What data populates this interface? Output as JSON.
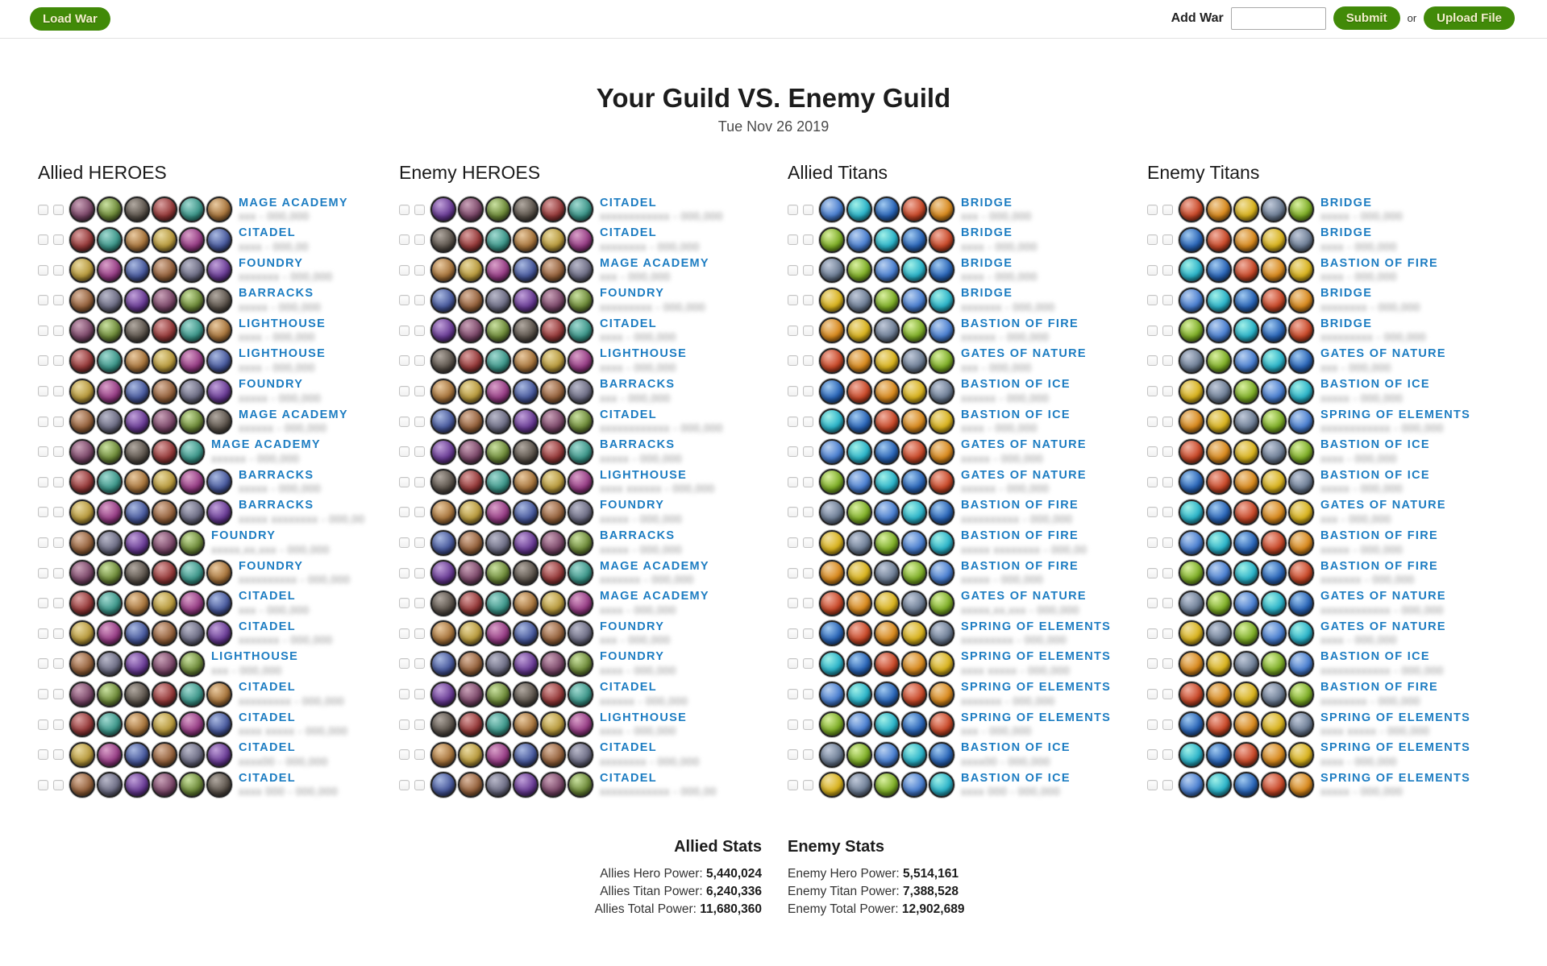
{
  "topbar": {
    "load_war": "Load War",
    "add_war_label": "Add War",
    "add_war_value": "",
    "submit": "Submit",
    "or": "or",
    "upload_file": "Upload File"
  },
  "title": "Your Guild VS. Enemy Guild",
  "date": "Tue Nov 26 2019",
  "colors": {
    "accent_green": "#418a08",
    "label_blue": "#1d7dc2"
  },
  "columns": [
    {
      "id": "allied-heroes",
      "title": "Allied HEROES",
      "kind": "hero",
      "rows": [
        {
          "label": "MAGE ACADEMY",
          "avatars": 6,
          "masked": "xxx - 000,000"
        },
        {
          "label": "CITADEL",
          "avatars": 6,
          "masked": "xxxx - 000,00"
        },
        {
          "label": "FOUNDRY",
          "avatars": 6,
          "masked": "xxxxxxx - 000,000"
        },
        {
          "label": "BARRACKS",
          "avatars": 6,
          "masked": "xxxxx - 000,000"
        },
        {
          "label": "LIGHTHOUSE",
          "avatars": 6,
          "masked": "xxxx - 000,000"
        },
        {
          "label": "LIGHTHOUSE",
          "avatars": 6,
          "masked": "xxxx - 000,000"
        },
        {
          "label": "FOUNDRY",
          "avatars": 6,
          "masked": "xxxxx - 000,000"
        },
        {
          "label": "MAGE ACADEMY",
          "avatars": 6,
          "masked": "xxxxxx - 000,000"
        },
        {
          "label": "MAGE ACADEMY",
          "avatars": 5,
          "masked": "xxxxxx - 000,000"
        },
        {
          "label": "BARRACKS",
          "avatars": 6,
          "masked": "xxxxx - 000,000"
        },
        {
          "label": "BARRACKS",
          "avatars": 6,
          "masked": "xxxxx xxxxxxxx - 000,00"
        },
        {
          "label": "FOUNDRY",
          "avatars": 5,
          "masked": "xxxxx,xx,xxx - 000,000"
        },
        {
          "label": "FOUNDRY",
          "avatars": 6,
          "masked": "xxxxxxxxxx - 000,000"
        },
        {
          "label": "CITADEL",
          "avatars": 6,
          "masked": "xxx - 000,000"
        },
        {
          "label": "CITADEL",
          "avatars": 6,
          "masked": "xxxxxxx - 000,000"
        },
        {
          "label": "LIGHTHOUSE",
          "avatars": 5,
          "masked": "xxx - 000,000"
        },
        {
          "label": "CITADEL",
          "avatars": 6,
          "masked": "xxxxxxxxx - 000,000"
        },
        {
          "label": "CITADEL",
          "avatars": 6,
          "masked": "xxxx xxxxx - 000,000"
        },
        {
          "label": "CITADEL",
          "avatars": 6,
          "masked": "xxxx00 - 000,000"
        },
        {
          "label": "CITADEL",
          "avatars": 6,
          "masked": "xxxx 000 - 000,000"
        }
      ]
    },
    {
      "id": "enemy-heroes",
      "title": "Enemy HEROES",
      "kind": "hero",
      "rows": [
        {
          "label": "CITADEL",
          "avatars": 6,
          "masked": "xxxxxxxxxxxx - 000,000"
        },
        {
          "label": "CITADEL",
          "avatars": 6,
          "masked": "xxxxxxxx - 000,000"
        },
        {
          "label": "MAGE ACADEMY",
          "avatars": 6,
          "masked": "xxx - 000,000"
        },
        {
          "label": "FOUNDRY",
          "avatars": 6,
          "masked": "xxxxxxxxx - 000,000"
        },
        {
          "label": "CITADEL",
          "avatars": 6,
          "masked": "xxxx - 000,000"
        },
        {
          "label": "LIGHTHOUSE",
          "avatars": 6,
          "masked": "xxxx - 000,000"
        },
        {
          "label": "BARRACKS",
          "avatars": 6,
          "masked": "xxx - 000,000"
        },
        {
          "label": "CITADEL",
          "avatars": 6,
          "masked": "xxxxxxxxxxxx - 000,000"
        },
        {
          "label": "BARRACKS",
          "avatars": 6,
          "masked": "xxxxx - 000,000"
        },
        {
          "label": "LIGHTHOUSE",
          "avatars": 6,
          "masked": "xxxx xxxxxx - 000,000"
        },
        {
          "label": "FOUNDRY",
          "avatars": 6,
          "masked": "xxxxx - 000,000"
        },
        {
          "label": "BARRACKS",
          "avatars": 6,
          "masked": "xxxxx - 000,000"
        },
        {
          "label": "MAGE ACADEMY",
          "avatars": 6,
          "masked": "xxxxxxx - 000,000"
        },
        {
          "label": "MAGE ACADEMY",
          "avatars": 6,
          "masked": "xxxx - 000,000"
        },
        {
          "label": "FOUNDRY",
          "avatars": 6,
          "masked": "xxx - 000,000"
        },
        {
          "label": "FOUNDRY",
          "avatars": 6,
          "masked": "xxxx - 000,000"
        },
        {
          "label": "CITADEL",
          "avatars": 6,
          "masked": "xxxxxx - 000,000"
        },
        {
          "label": "LIGHTHOUSE",
          "avatars": 6,
          "masked": "xxxx - 000,000"
        },
        {
          "label": "CITADEL",
          "avatars": 6,
          "masked": "xxxxxxxx - 000,000"
        },
        {
          "label": "CITADEL",
          "avatars": 6,
          "masked": "xxxxxxxxxxxx - 000,00"
        }
      ]
    },
    {
      "id": "allied-titans",
      "title": "Allied Titans",
      "kind": "titan",
      "rows": [
        {
          "label": "BRIDGE",
          "avatars": 5,
          "masked": "xxx - 000,000"
        },
        {
          "label": "BRIDGE",
          "avatars": 5,
          "masked": "xxxx - 000,000"
        },
        {
          "label": "BRIDGE",
          "avatars": 5,
          "masked": "xxxx - 000,000"
        },
        {
          "label": "BRIDGE",
          "avatars": 5,
          "masked": "xxxxxxx - 000,000"
        },
        {
          "label": "BASTION OF FIRE",
          "avatars": 5,
          "masked": "xxxxxx - 000,000"
        },
        {
          "label": "GATES OF NATURE",
          "avatars": 5,
          "masked": "xxx - 000,000"
        },
        {
          "label": "BASTION OF ICE",
          "avatars": 5,
          "masked": "xxxxxx - 000,000"
        },
        {
          "label": "BASTION OF ICE",
          "avatars": 5,
          "masked": "xxxx - 000,000"
        },
        {
          "label": "GATES OF NATURE",
          "avatars": 5,
          "masked": "xxxxx - 000,000"
        },
        {
          "label": "GATES OF NATURE",
          "avatars": 5,
          "masked": "xxxxxx - 000,000"
        },
        {
          "label": "BASTION OF FIRE",
          "avatars": 5,
          "masked": "xxxxxxxxxx - 000,000"
        },
        {
          "label": "BASTION OF FIRE",
          "avatars": 5,
          "masked": "xxxxx xxxxxxxx - 000,00"
        },
        {
          "label": "BASTION OF FIRE",
          "avatars": 5,
          "masked": "xxxxx - 000,000"
        },
        {
          "label": "GATES OF NATURE",
          "avatars": 5,
          "masked": "xxxxx,xx,xxx - 000,000"
        },
        {
          "label": "SPRING OF ELEMENTS",
          "avatars": 5,
          "masked": "xxxxxxxxx - 000,000"
        },
        {
          "label": "SPRING OF ELEMENTS",
          "avatars": 5,
          "masked": "xxxx xxxxx - 000,000"
        },
        {
          "label": "SPRING OF ELEMENTS",
          "avatars": 5,
          "masked": "xxxxxxx - 000,000"
        },
        {
          "label": "SPRING OF ELEMENTS",
          "avatars": 5,
          "masked": "xxx - 000,000"
        },
        {
          "label": "BASTION OF ICE",
          "avatars": 5,
          "masked": "xxxx00 - 000,000"
        },
        {
          "label": "BASTION OF ICE",
          "avatars": 5,
          "masked": "xxxx 000 - 000,000"
        }
      ]
    },
    {
      "id": "enemy-titans",
      "title": "Enemy Titans",
      "kind": "titan",
      "rows": [
        {
          "label": "BRIDGE",
          "avatars": 5,
          "masked": "xxxxx - 000,000"
        },
        {
          "label": "BRIDGE",
          "avatars": 5,
          "masked": "xxxx - 000,000"
        },
        {
          "label": "BASTION OF FIRE",
          "avatars": 5,
          "masked": "xxxx - 000,000"
        },
        {
          "label": "BRIDGE",
          "avatars": 5,
          "masked": "xxxxxxxx - 000,000"
        },
        {
          "label": "BRIDGE",
          "avatars": 5,
          "masked": "xxxxxxxxx - 000,000"
        },
        {
          "label": "GATES OF NATURE",
          "avatars": 5,
          "masked": "xxx - 000,000"
        },
        {
          "label": "BASTION OF ICE",
          "avatars": 5,
          "masked": "xxxxx - 000,000"
        },
        {
          "label": "SPRING OF ELEMENTS",
          "avatars": 5,
          "masked": "xxxxxxxxxxxx - 000,000"
        },
        {
          "label": "BASTION OF ICE",
          "avatars": 5,
          "masked": "xxxx - 000,000"
        },
        {
          "label": "BASTION OF ICE",
          "avatars": 5,
          "masked": "xxxxx - 000,000"
        },
        {
          "label": "GATES OF NATURE",
          "avatars": 5,
          "masked": "xxx - 000,000"
        },
        {
          "label": "BASTION OF FIRE",
          "avatars": 5,
          "masked": "xxxxx - 000,000"
        },
        {
          "label": "BASTION OF FIRE",
          "avatars": 5,
          "masked": "xxxxxxx - 000,000"
        },
        {
          "label": "GATES OF NATURE",
          "avatars": 5,
          "masked": "xxxxxxxxxxxx - 000,000"
        },
        {
          "label": "GATES OF NATURE",
          "avatars": 5,
          "masked": "xxxx - 000,000"
        },
        {
          "label": "BASTION OF ICE",
          "avatars": 5,
          "masked": "xxxxxxxxxxxx - 000,000"
        },
        {
          "label": "BASTION OF FIRE",
          "avatars": 5,
          "masked": "xxxxxxxx - 000,000"
        },
        {
          "label": "SPRING OF ELEMENTS",
          "avatars": 5,
          "masked": "xxxx xxxxx - 000,000"
        },
        {
          "label": "SPRING OF ELEMENTS",
          "avatars": 5,
          "masked": "xxxx - 000,000"
        },
        {
          "label": "SPRING OF ELEMENTS",
          "avatars": 5,
          "masked": "xxxxx - 000,000"
        }
      ]
    }
  ],
  "stats": {
    "allied": {
      "title": "Allied Stats",
      "lines": [
        {
          "label": "Allies Hero Power:",
          "value": "5,440,024"
        },
        {
          "label": "Allies Titan Power:",
          "value": "6,240,336"
        },
        {
          "label": "Allies Total Power:",
          "value": "11,680,360"
        }
      ]
    },
    "enemy": {
      "title": "Enemy Stats",
      "lines": [
        {
          "label": "Enemy Hero Power:",
          "value": "5,514,161"
        },
        {
          "label": "Enemy Titan Power:",
          "value": "7,388,528"
        },
        {
          "label": "Enemy Total Power:",
          "value": "12,902,689"
        }
      ]
    }
  },
  "palettes": {
    "hero": [
      [
        "#c9a2b8",
        "#7d4a6b",
        "#33172b"
      ],
      [
        "#e8c9a0",
        "#a8763e",
        "#4a2c12"
      ],
      [
        "#b8b8c9",
        "#6e6e85",
        "#26262f"
      ],
      [
        "#d9a0a0",
        "#963b3b",
        "#3d1010"
      ],
      [
        "#a8b8e0",
        "#4a5b9e",
        "#161c3d"
      ],
      [
        "#c9e0a0",
        "#6e8a3a",
        "#2a3812"
      ],
      [
        "#e8d9a0",
        "#b89a3e",
        "#4d3c0e"
      ],
      [
        "#c0a0d9",
        "#6b3e96",
        "#2a0e44"
      ],
      [
        "#a0d9d0",
        "#3e968a",
        "#0e443c"
      ],
      [
        "#d9b8a0",
        "#96633e",
        "#442a0e"
      ],
      [
        "#b0a8a0",
        "#5f574f",
        "#221e1a"
      ],
      [
        "#d9a0c9",
        "#963e85",
        "#440e3a"
      ]
    ],
    "titan": [
      [
        "#a0c9f0",
        "#2b66b8",
        "#0d2a55"
      ],
      [
        "#d9f0a0",
        "#7fae28",
        "#324d0a"
      ],
      [
        "#f0d0a0",
        "#d98a1e",
        "#5c3608"
      ],
      [
        "#a0f0e8",
        "#2bb3c9",
        "#0a4653"
      ],
      [
        "#c0c9d9",
        "#6f7f96",
        "#2a3340"
      ],
      [
        "#f0b0a0",
        "#c94a2a",
        "#551607"
      ],
      [
        "#b8d0f0",
        "#4a7fd0",
        "#122f5e"
      ],
      [
        "#f0e0a0",
        "#d9b31e",
        "#5c4a08"
      ]
    ]
  }
}
